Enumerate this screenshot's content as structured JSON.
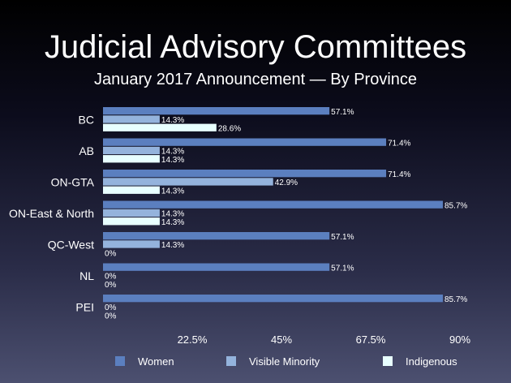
{
  "chart_data": {
    "type": "bar",
    "orientation": "horizontal",
    "title": "Judicial Advisory Committees",
    "subtitle": "January 2017 Announcement — By Province",
    "categories": [
      "BC",
      "AB",
      "ON-GTA",
      "ON-East & North",
      "QC-West",
      "NL",
      "PEI"
    ],
    "series": [
      {
        "name": "Women",
        "color": "#5b7fbf",
        "values": [
          57.1,
          71.4,
          71.4,
          85.7,
          57.1,
          57.1,
          85.7
        ],
        "labels": [
          "57.1%",
          "71.4%",
          "71.4%",
          "85.7%",
          "57.1%",
          "57.1%",
          "85.7%"
        ]
      },
      {
        "name": "Visible Minority",
        "color": "#94b3dc",
        "values": [
          14.3,
          14.3,
          42.9,
          14.3,
          14.3,
          0,
          0
        ],
        "labels": [
          "14.3%",
          "14.3%",
          "42.9%",
          "14.3%",
          "14.3%",
          "0%",
          "0%"
        ]
      },
      {
        "name": "Indigenous",
        "color": "#e8ffff",
        "values": [
          28.6,
          14.3,
          14.3,
          14.3,
          0,
          0,
          0
        ],
        "labels": [
          "28.6%",
          "14.3%",
          "14.3%",
          "14.3%",
          "0%",
          "0%",
          "0%"
        ]
      }
    ],
    "x_ticks": [
      "22.5%",
      "45%",
      "67.5%",
      "90%"
    ],
    "x_tick_values": [
      22.5,
      45,
      67.5,
      90
    ],
    "xlim": [
      0,
      90
    ],
    "grid": false,
    "legend_position": "bottom"
  }
}
